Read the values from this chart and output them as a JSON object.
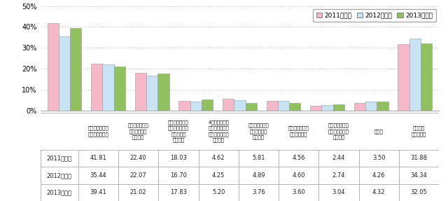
{
  "categories": [
    "自宅から通える\n学校を選択した",
    "できるだけ学費\nが安い学校を\n選択した",
    "奨学金や学費支\n援制度が利用で\nきる学校を\n選択した",
    "4年制の大学で\nはなく、在学期\n間の短い短大を\n選択した",
    "アルバイトをし\nやすい学校を\n選択した",
    "私立大学への進\n学を断念した",
    "下宿より割安の\n宮がある学校を\n選択した",
    "その他",
    "特に考慮\nしなかった"
  ],
  "series": [
    {
      "name": "2011年調査",
      "values": [
        41.81,
        22.4,
        18.03,
        4.62,
        5.81,
        4.56,
        2.44,
        3.5,
        31.88
      ],
      "color": "#f4b8c8"
    },
    {
      "name": "2012年調査",
      "values": [
        35.44,
        22.07,
        16.7,
        4.25,
        4.89,
        4.6,
        2.74,
        4.26,
        34.34
      ],
      "color": "#c8e4f4"
    },
    {
      "name": "2013年調査",
      "values": [
        39.41,
        21.02,
        17.83,
        5.2,
        3.76,
        3.6,
        3.04,
        4.32,
        32.05
      ],
      "color": "#90c060"
    }
  ],
  "ylim": [
    0,
    50
  ],
  "yticks": [
    0,
    10,
    20,
    30,
    40,
    50
  ],
  "yticklabels": [
    "0%",
    "10%",
    "20%",
    "30%",
    "40%",
    "50%"
  ],
  "bar_width": 0.26,
  "figure_width": 6.4,
  "figure_height": 2.87,
  "dpi": 100,
  "bg_color": "#ffffff",
  "grid_color": "#cccccc",
  "table_rows": [
    [
      "2011年調査",
      "41.81",
      "22.40",
      "18.03",
      "4.62",
      "5.81",
      "4.56",
      "2.44",
      "3.50",
      "31.88"
    ],
    [
      "2012年調査",
      "35.44",
      "22.07",
      "16.70",
      "4.25",
      "4.89",
      "4.60",
      "2.74",
      "4.26",
      "34.34"
    ],
    [
      "2013年調査",
      "39.41",
      "21.02",
      "17.83",
      "5.20",
      "3.76",
      "3.60",
      "3.04",
      "4.32",
      "32.05"
    ]
  ]
}
